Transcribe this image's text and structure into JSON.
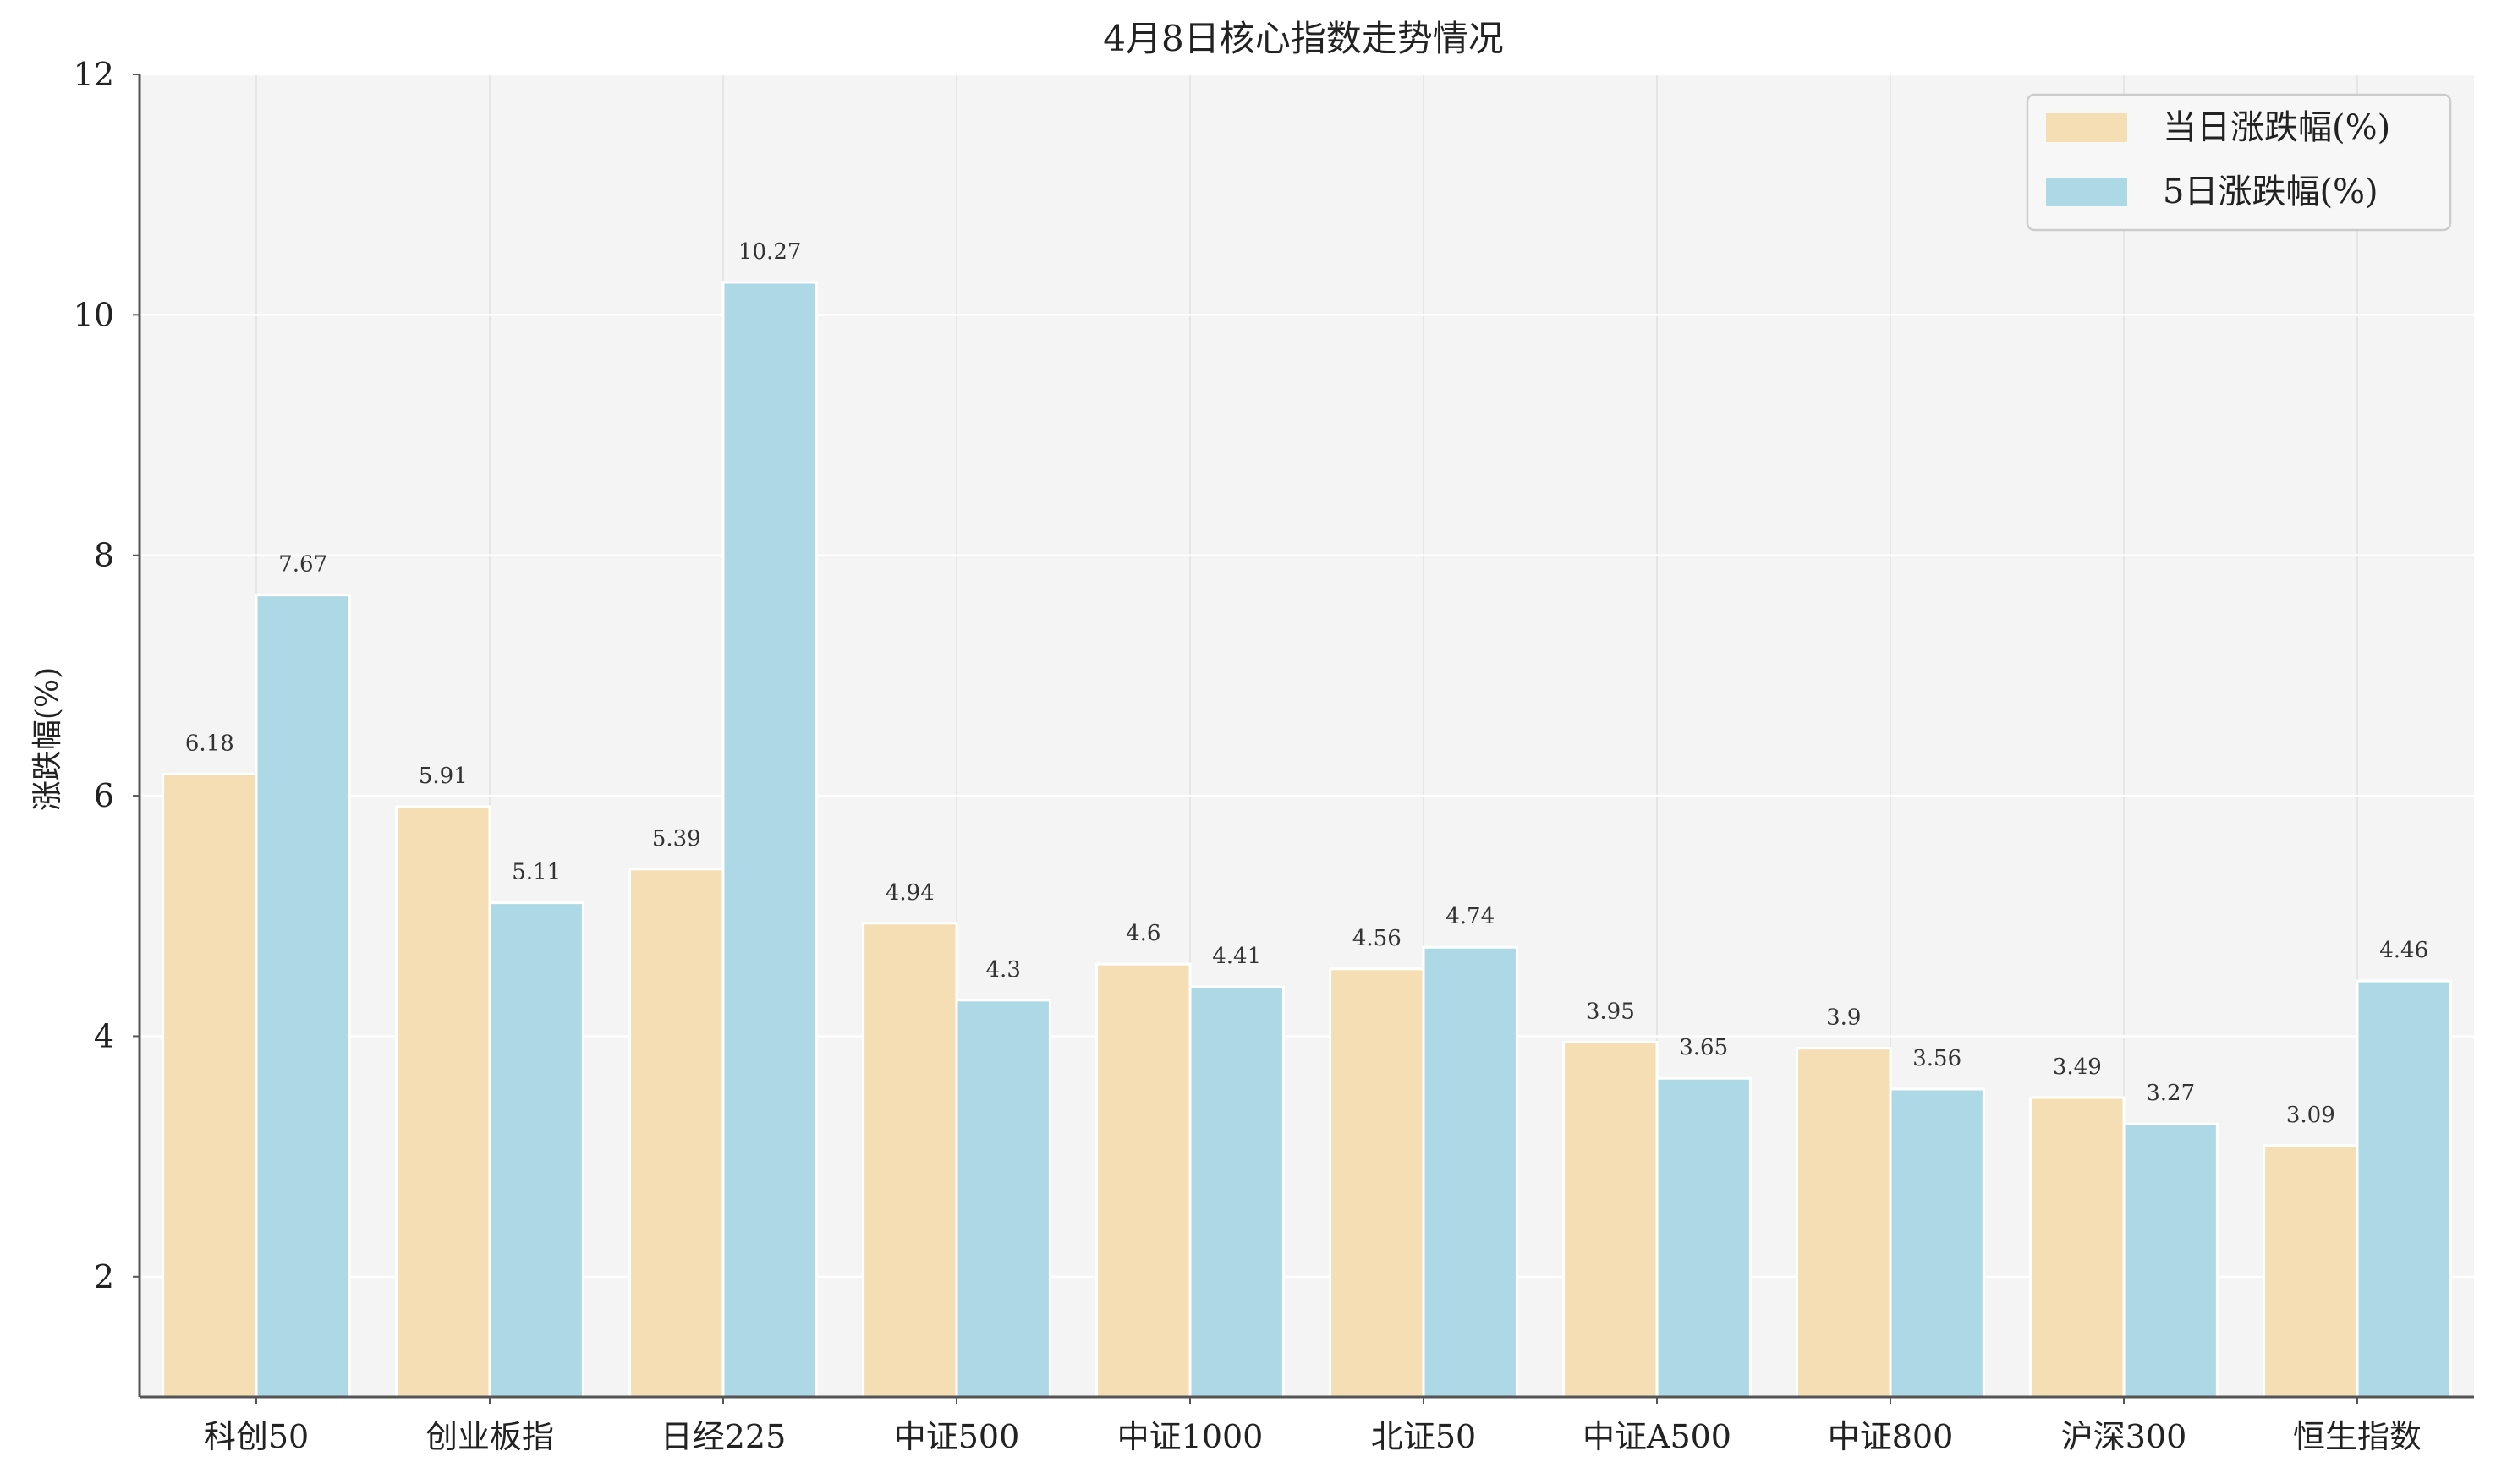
{
  "chart_data": {
    "type": "bar",
    "title": "4月8日核心指数走势情况",
    "xlabel": "",
    "ylabel": "涨跌幅(%)",
    "ylim": [
      1,
      12
    ],
    "yticks": [
      2,
      4,
      6,
      8,
      10,
      12
    ],
    "grid": true,
    "legend_position": "top-right",
    "categories": [
      "科创50",
      "创业板指",
      "日经225",
      "中证500",
      "中证1000",
      "北证50",
      "中证A500",
      "中证800",
      "沪深300",
      "恒生指数"
    ],
    "series": [
      {
        "name": "当日涨跌幅(%)",
        "color": "#F5DEB3",
        "values": [
          6.18,
          5.91,
          5.39,
          4.94,
          4.6,
          4.56,
          3.95,
          3.9,
          3.49,
          3.09
        ]
      },
      {
        "name": "5日涨跌幅(%)",
        "color": "#ADD8E6",
        "values": [
          7.67,
          5.11,
          10.27,
          4.3,
          4.41,
          4.74,
          3.65,
          3.56,
          3.27,
          4.46
        ]
      }
    ]
  }
}
